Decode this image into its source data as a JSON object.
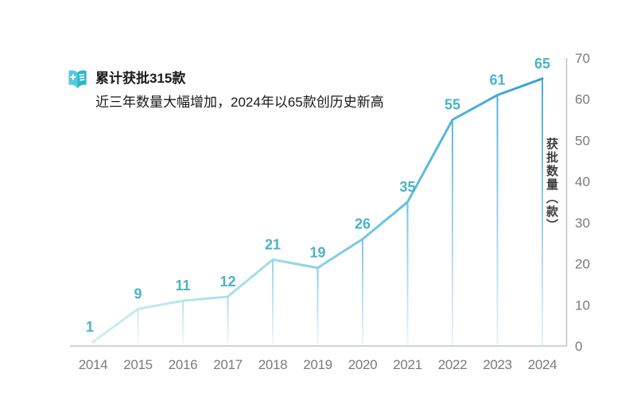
{
  "header": {
    "icon": "book-plus-icon",
    "title": "累计获批315款",
    "subtitle": "近三年数量大幅增加，2024年以65款创历史新高"
  },
  "chart_data": {
    "type": "line",
    "title": "累计获批315款",
    "subtitle": "近三年数量大幅增加，2024年以65款创历史新高",
    "categories": [
      "2014",
      "2015",
      "2016",
      "2017",
      "2018",
      "2019",
      "2020",
      "2021",
      "2022",
      "2023",
      "2024"
    ],
    "values": [
      1,
      9,
      11,
      12,
      21,
      19,
      26,
      35,
      55,
      61,
      65
    ],
    "xlabel": "",
    "ylabel": "获批数量（款）",
    "ylim": [
      0,
      70
    ],
    "ytick_step": 10,
    "yaxis_side": "right",
    "grid": false,
    "point_labels_shown": true,
    "drop_lines_shown": true,
    "legend": "none",
    "colors": {
      "line_start": "#cdeef3",
      "line_mid": "#9fdde9",
      "line_end": "#2f9fd7",
      "point_label": "#48b4c4",
      "axis": "#c6c6c6",
      "tick_text": "#7b7b7b",
      "ylabel_text": "#3d3d3d",
      "icon_left": "#53cbd9",
      "icon_right": "#29b6cc",
      "title_text": "#1a1a1a"
    }
  }
}
